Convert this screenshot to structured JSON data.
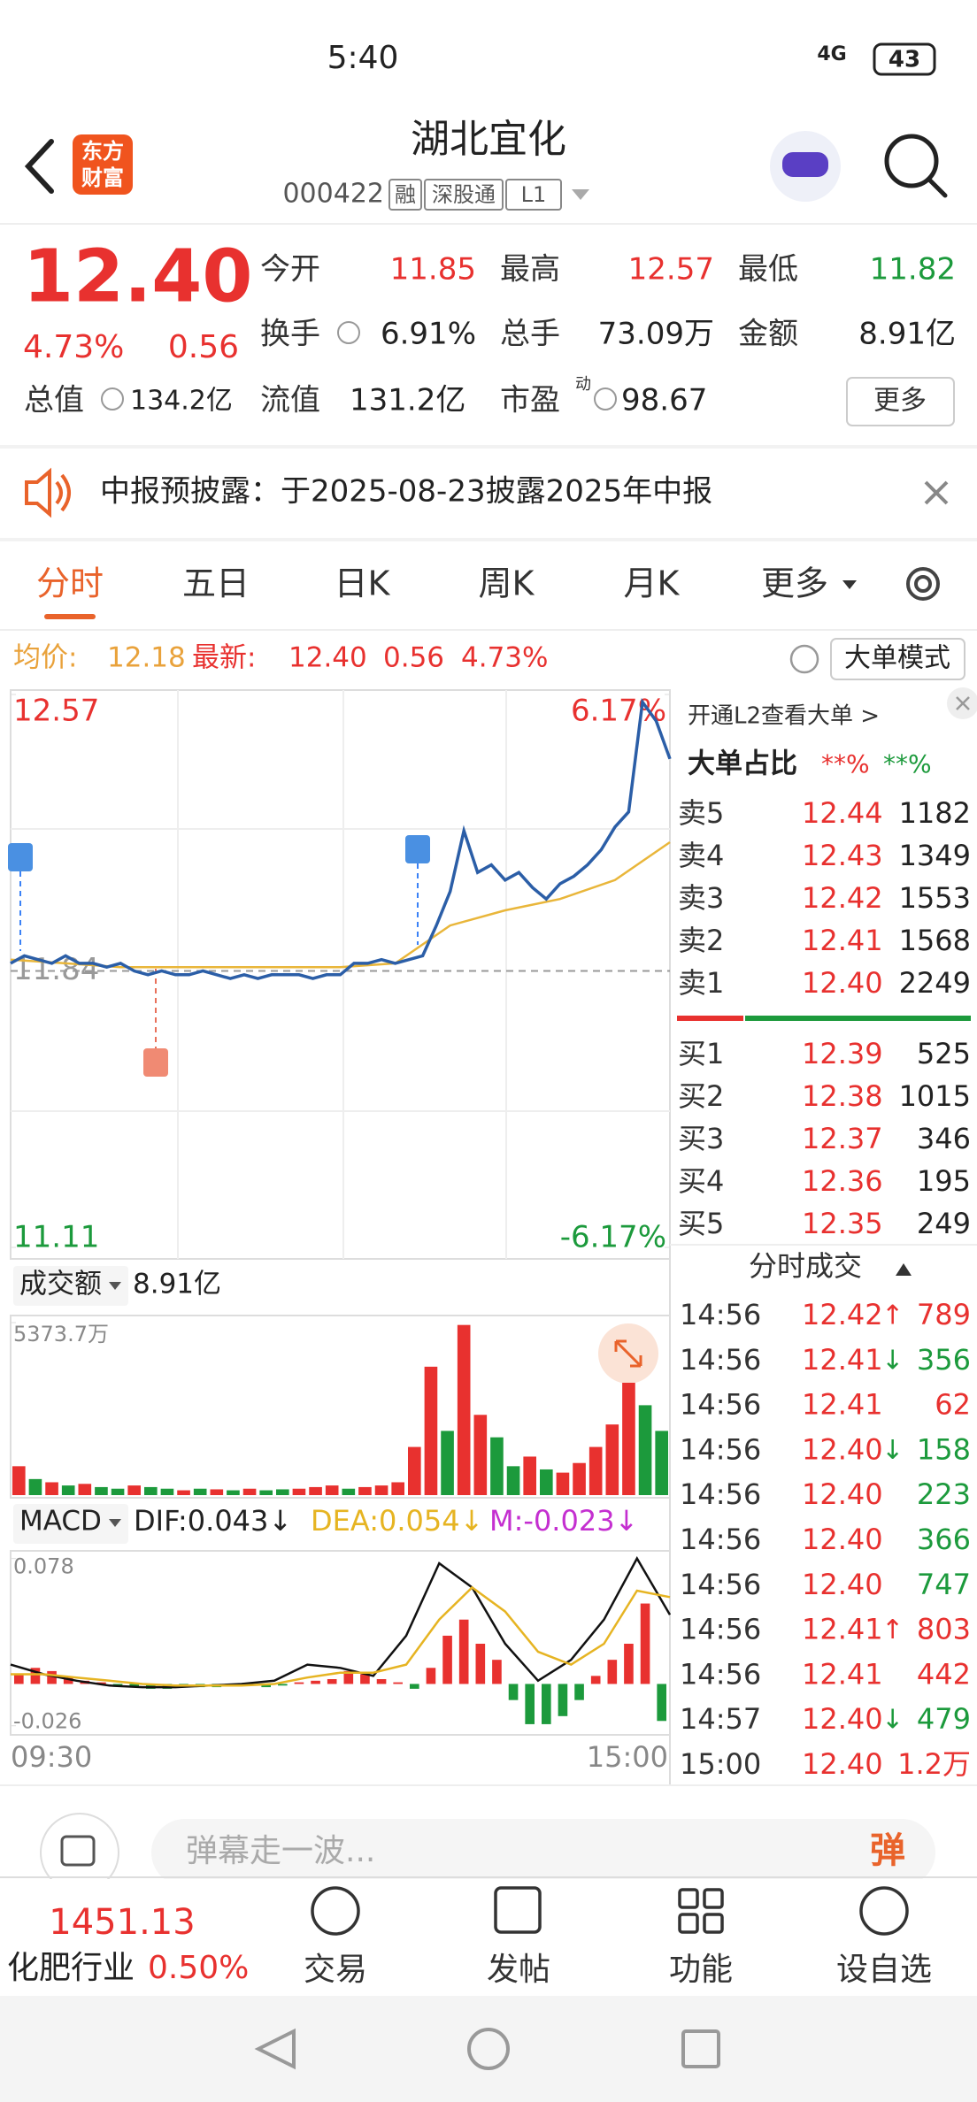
{
  "status_bar": {
    "time": "5:40",
    "network": "4G",
    "battery": "43"
  },
  "header": {
    "logo": [
      "东方",
      "财富"
    ],
    "title": "湖北宜化",
    "code": "000422",
    "tags": [
      "融",
      "深股通",
      "L1"
    ]
  },
  "quote": {
    "price": "12.40",
    "change_pct": "4.73%",
    "change": "0.56",
    "stats": [
      {
        "label": "今开",
        "value": "11.85",
        "color": "#e8312f"
      },
      {
        "label": "最高",
        "value": "12.57",
        "color": "#e8312f"
      },
      {
        "label": "最低",
        "value": "11.82",
        "color": "#1c9a3c"
      },
      {
        "label": "换手",
        "value": "6.91%",
        "color": "#222222"
      },
      {
        "label": "总手",
        "value": "73.09万",
        "color": "#222222"
      },
      {
        "label": "金额",
        "value": "8.91亿",
        "color": "#222222"
      },
      {
        "label": "总值",
        "value": "134.2亿",
        "color": "#222222"
      },
      {
        "label": "流值",
        "value": "131.2亿",
        "color": "#222222"
      },
      {
        "label": "市盈",
        "sup": "动",
        "value": "98.67",
        "color": "#222222"
      }
    ],
    "more_button": "更多"
  },
  "notice": {
    "text": "中报预披露：于2025-08-23披露2025年中报"
  },
  "tabs": [
    "分时",
    "五日",
    "日K",
    "周K",
    "月K",
    "更多"
  ],
  "info_line": {
    "avg_label": "均价:",
    "avg": "12.18",
    "latest_label": "最新:",
    "latest": "12.40",
    "change": "0.56",
    "pct": "4.73%",
    "mode_button": "大单模式"
  },
  "chart_data": [
    {
      "type": "line",
      "ylim": [
        11.11,
        12.57
      ],
      "yticks": [
        12.57,
        11.84,
        11.11
      ],
      "y2lim": [
        -6.17,
        6.17
      ],
      "y2ticks": [
        {
          "value": 6.17,
          "label": "6.17%"
        },
        {
          "value": -6.17,
          "label": "-6.17%"
        }
      ],
      "series": [
        {
          "color": "#2b5ea7",
          "values": [
            11.86,
            11.88,
            11.87,
            11.86,
            11.88,
            11.86,
            11.86,
            11.85,
            11.86,
            11.84,
            11.83,
            11.84,
            11.83,
            11.83,
            11.84,
            11.83,
            11.82,
            11.83,
            11.82,
            11.83,
            11.83,
            11.83,
            11.82,
            11.83,
            11.83,
            11.86,
            11.86,
            11.87,
            11.86,
            11.87,
            11.88,
            11.96,
            12.05,
            12.21,
            12.1,
            12.12,
            12.08,
            12.1,
            12.06,
            12.03,
            12.07,
            12.09,
            12.12,
            12.16,
            12.22,
            12.26,
            12.55,
            12.5,
            12.4
          ]
        },
        {
          "color": "#e9b63a",
          "values": [
            11.87,
            11.86,
            11.85,
            11.85,
            11.85,
            11.85,
            11.85,
            11.86,
            11.96,
            12.0,
            12.03,
            12.08,
            12.18
          ]
        }
      ]
    },
    {
      "type": "bar",
      "title": "成交额",
      "total": "8.91亿",
      "ylim": [
        0,
        5373.7
      ],
      "yticks": [
        {
          "value": 5373.7,
          "label": "5373.7万"
        }
      ],
      "values": [
        900,
        500,
        400,
        300,
        350,
        250,
        200,
        300,
        250,
        200,
        150,
        200,
        180,
        150,
        200,
        150,
        180,
        200,
        250,
        300,
        200,
        250,
        300,
        400,
        1500,
        4000,
        2000,
        5300,
        2500,
        1800,
        900,
        1200,
        800,
        700,
        1000,
        1500,
        2200,
        3500,
        2800,
        2000
      ],
      "colors": [
        "#e8312f",
        "#1c9a3c",
        "#e8312f",
        "#1c9a3c",
        "#e8312f",
        "#1c9a3c",
        "#1c9a3c",
        "#e8312f",
        "#1c9a3c",
        "#1c9a3c",
        "#e8312f",
        "#1c9a3c",
        "#e8312f",
        "#1c9a3c",
        "#e8312f",
        "#1c9a3c",
        "#1c9a3c",
        "#e8312f",
        "#e8312f",
        "#e8312f",
        "#1c9a3c",
        "#e8312f",
        "#e8312f",
        "#e8312f",
        "#e8312f",
        "#e8312f",
        "#1c9a3c",
        "#e8312f",
        "#e8312f",
        "#1c9a3c",
        "#1c9a3c",
        "#e8312f",
        "#1c9a3c",
        "#e8312f",
        "#e8312f",
        "#e8312f",
        "#e8312f",
        "#e8312f",
        "#1c9a3c",
        "#1c9a3c"
      ]
    },
    {
      "type": "macd",
      "title": "MACD",
      "indicators": [
        {
          "label": "DIF:0.043↓",
          "color": "#222222"
        },
        {
          "label": "DEA:0.054↓",
          "color": "#e6b422"
        },
        {
          "label": "M:-0.023↓",
          "color": "#c42fd0"
        }
      ],
      "ylim": [
        -0.03,
        0.08
      ],
      "yticks": [
        0.078,
        -0.026
      ],
      "up_color": "#e8312f",
      "down_color": "#1c9a3c",
      "histogram": [
        0.006,
        0.01,
        0.008,
        0.004,
        0.002,
        0.001,
        -0.001,
        -0.002,
        -0.003,
        -0.003,
        -0.002,
        -0.002,
        -0.002,
        -0.001,
        -0.001,
        -0.002,
        -0.001,
        0.001,
        0.002,
        0.003,
        0.008,
        0.006,
        0.003,
        0.001,
        -0.003,
        0.01,
        0.03,
        0.04,
        0.025,
        0.015,
        -0.01,
        -0.025,
        -0.025,
        -0.02,
        -0.01,
        0.005,
        0.015,
        0.025,
        0.05,
        -0.023
      ],
      "series": [
        {
          "color": "#111111",
          "values": [
            0.012,
            0.006,
            0.002,
            -0.001,
            -0.002,
            -0.002,
            -0.001,
            0.0,
            0.002,
            0.012,
            0.01,
            0.005,
            0.03,
            0.075,
            0.06,
            0.025,
            0.002,
            0.015,
            0.04,
            0.078,
            0.043
          ]
        },
        {
          "color": "#e6b422",
          "values": [
            0.006,
            0.006,
            0.004,
            0.002,
            0.0,
            -0.001,
            -0.001,
            -0.001,
            0.0,
            0.004,
            0.007,
            0.007,
            0.012,
            0.04,
            0.06,
            0.045,
            0.02,
            0.012,
            0.025,
            0.058,
            0.054
          ]
        }
      ],
      "x_labels": [
        "09:30",
        "15:00"
      ]
    }
  ],
  "order_book": {
    "promo": "开通L2查看大单 >",
    "ratio_label": "大单占比",
    "ratio_values": [
      "**%",
      "**%"
    ],
    "asks": [
      [
        "卖5",
        "12.44",
        "1182"
      ],
      [
        "卖4",
        "12.43",
        "1349"
      ],
      [
        "卖3",
        "12.42",
        "1553"
      ],
      [
        "卖2",
        "12.41",
        "1568"
      ],
      [
        "卖1",
        "12.40",
        "2249"
      ]
    ],
    "bids": [
      [
        "买1",
        "12.39",
        "525"
      ],
      [
        "买2",
        "12.38",
        "1015"
      ],
      [
        "买3",
        "12.37",
        "346"
      ],
      [
        "买4",
        "12.36",
        "195"
      ],
      [
        "买5",
        "12.35",
        "249"
      ]
    ]
  },
  "trades": {
    "title": "分时成交",
    "rows": [
      {
        "time": "14:56",
        "price": "12.42",
        "arrow": "↑",
        "volume": "789",
        "color": "#e8312f"
      },
      {
        "time": "14:56",
        "price": "12.41",
        "arrow": "↓",
        "volume": "356",
        "color": "#1c9a3c"
      },
      {
        "time": "14:56",
        "price": "12.41",
        "volume": "62",
        "color": "#e8312f"
      },
      {
        "time": "14:56",
        "price": "12.40",
        "arrow": "↓",
        "volume": "158",
        "color": "#1c9a3c"
      },
      {
        "time": "14:56",
        "price": "12.40",
        "volume": "223",
        "color": "#1c9a3c"
      },
      {
        "time": "14:56",
        "price": "12.40",
        "volume": "366",
        "color": "#1c9a3c"
      },
      {
        "time": "14:56",
        "price": "12.40",
        "volume": "747",
        "color": "#1c9a3c"
      },
      {
        "time": "14:56",
        "price": "12.41",
        "arrow": "↑",
        "volume": "803",
        "color": "#e8312f"
      },
      {
        "time": "14:56",
        "price": "12.41",
        "volume": "442",
        "color": "#e8312f"
      },
      {
        "time": "14:57",
        "price": "12.40",
        "arrow": "↓",
        "volume": "479",
        "color": "#1c9a3c"
      },
      {
        "time": "15:00",
        "price": "12.40",
        "volume": "1.2万",
        "color": "#e8312f"
      }
    ]
  },
  "comment_bar": {
    "placeholder": "弹幕走一波...",
    "button": "弹"
  },
  "bottom_nav": {
    "index_value": "1451.13",
    "index_name": "化肥行业",
    "index_change": "0.50%",
    "items": [
      "交易",
      "发帖",
      "功能",
      "设自选"
    ]
  }
}
